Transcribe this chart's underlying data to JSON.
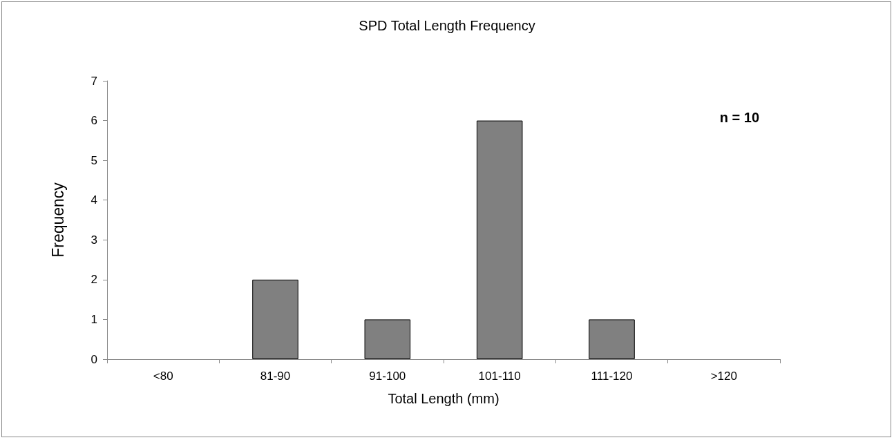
{
  "chart_data": {
    "type": "bar",
    "title": "SPD Total Length Frequency",
    "xlabel": "Total Length (mm)",
    "ylabel": "Frequency",
    "categories": [
      "<80",
      "81-90",
      "91-100",
      "101-110",
      "111-120",
      ">120"
    ],
    "values": [
      0,
      2,
      1,
      6,
      1,
      0
    ],
    "color": "#808080",
    "ylim": [
      0,
      7
    ],
    "yticks": [
      0,
      1,
      2,
      3,
      4,
      5,
      6,
      7
    ],
    "grid": false,
    "annotations": [
      "n = 10"
    ]
  }
}
